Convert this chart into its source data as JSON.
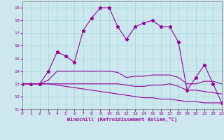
{
  "background_color": "#cce8ee",
  "grid_color": "#aadddd",
  "line_color": "#990099",
  "xlim": [
    0,
    23
  ],
  "ylim": [
    11,
    19.5
  ],
  "xticks": [
    0,
    1,
    2,
    3,
    4,
    5,
    6,
    7,
    8,
    9,
    10,
    11,
    12,
    13,
    14,
    15,
    16,
    17,
    18,
    19,
    20,
    21,
    22,
    23
  ],
  "yticks": [
    11,
    12,
    13,
    14,
    15,
    16,
    17,
    18,
    19
  ],
  "xlabel": "Windchill (Refroidissement éolien,°C)",
  "x": [
    0,
    1,
    2,
    3,
    4,
    5,
    6,
    7,
    8,
    9,
    10,
    11,
    12,
    13,
    14,
    15,
    16,
    17,
    18,
    19,
    20,
    21,
    22,
    23
  ],
  "line1": [
    13.0,
    13.0,
    13.0,
    14.0,
    15.5,
    15.2,
    14.7,
    17.2,
    18.2,
    19.0,
    19.0,
    17.5,
    16.5,
    17.5,
    17.8,
    18.0,
    17.5,
    17.5,
    16.3,
    12.5,
    13.5,
    14.5,
    13.0,
    11.5
  ],
  "line2": [
    13.0,
    13.0,
    13.0,
    13.3,
    14.0,
    14.0,
    14.0,
    14.0,
    14.0,
    14.0,
    14.0,
    13.9,
    13.5,
    13.6,
    13.6,
    13.7,
    13.7,
    13.7,
    13.5,
    13.0,
    13.0,
    13.2,
    13.2,
    13.0
  ],
  "line3": [
    13.0,
    13.0,
    13.0,
    13.0,
    13.0,
    13.0,
    13.0,
    13.0,
    13.0,
    13.0,
    13.0,
    13.0,
    12.9,
    12.8,
    12.8,
    12.9,
    12.9,
    13.0,
    12.8,
    12.5,
    12.5,
    12.4,
    12.3,
    12.2
  ],
  "line4": [
    13.0,
    13.0,
    13.0,
    13.0,
    12.9,
    12.8,
    12.7,
    12.6,
    12.5,
    12.4,
    12.3,
    12.2,
    12.1,
    12.0,
    11.9,
    11.9,
    11.8,
    11.8,
    11.7,
    11.6,
    11.6,
    11.5,
    11.5,
    11.5
  ]
}
